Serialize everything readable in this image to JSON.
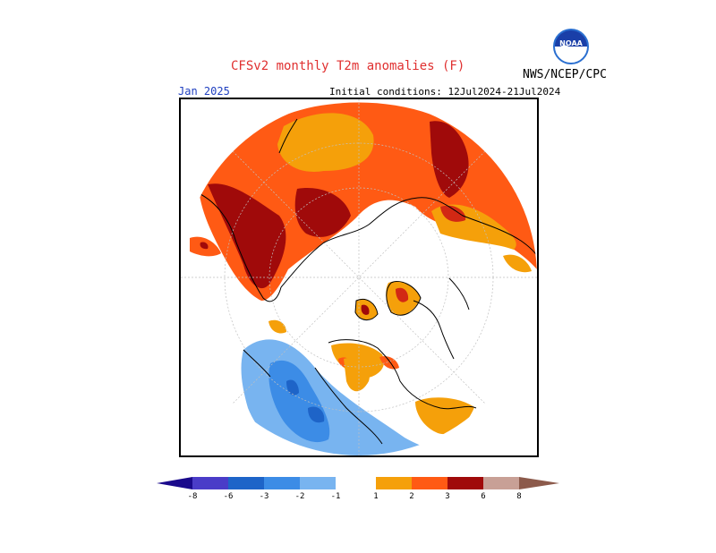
{
  "header": {
    "title": "CFSv2 monthly T2m anomalies (F)",
    "organization": "NWS/NCEP/CPC",
    "month": "Jan 2025",
    "initial_conditions": "Initial conditions: 12Jul2024-21Jul2024"
  },
  "logo": {
    "text": "NOAA",
    "icon": "noaa-logo-icon"
  },
  "colorbar": {
    "labels": [
      "-8",
      "-6",
      "-3",
      "-2",
      "-1",
      "1",
      "2",
      "3",
      "6",
      "8"
    ],
    "colors": {
      "lt_-8": "#1a0a8c",
      "-8_-6": "#4a3cc8",
      "-6_-3": "#1e64c8",
      "-3_-2": "#3c8ce6",
      "-2_-1": "#78b4f0",
      "-1_1": "#ffffff",
      "1_2": "#f5a00a",
      "2_3": "#ff5a14",
      "3_6": "#d22814",
      "6_8": "#a00a0a",
      "8_plus": "#c8a096",
      "gt_8": "#8c5a4b"
    }
  }
}
